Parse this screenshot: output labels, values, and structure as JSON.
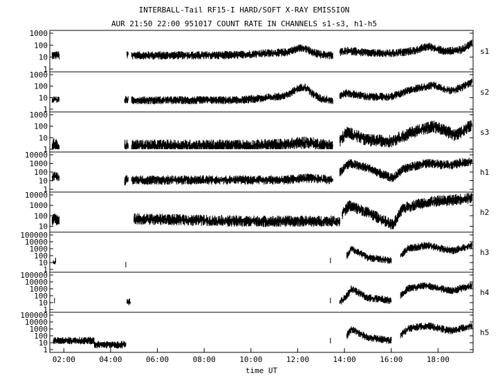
{
  "header": {
    "title": "INTERBALL-Tail RF15-I HARD/SOFT X-RAY EMISSION",
    "subtitle": "AUR 21:50 22:00 951017  COUNT RATE IN CHANNELS s1-s3, h1-h5"
  },
  "chart_data": {
    "type": "line",
    "title": "INTERBALL-Tail RF15-I HARD/SOFT X-RAY EMISSION",
    "subtitle": "AUR 21:50 22:00 951017  COUNT RATE IN CHANNELS s1-s3, h1-h5",
    "xlabel": "time UT",
    "x_ticks": [
      "02:00",
      "04:00",
      "06:00",
      "08:00",
      "10:00",
      "12:00",
      "14:00",
      "16:00",
      "18:00"
    ],
    "xlim_hours": [
      1.4,
      19.5
    ],
    "y_scale": "log",
    "grid": false,
    "panels": [
      {
        "name": "s1",
        "y_ticks": [
          "1",
          "10",
          "100",
          "1000"
        ],
        "ylim": [
          1,
          1000
        ],
        "series": [
          {
            "x": [
              1.5,
              1.6,
              1.7,
              1.8
            ],
            "values": [
              15,
              14,
              15,
              13
            ]
          },
          {
            "x": [
              4.7,
              4.75
            ],
            "values": [
              16,
              16
            ]
          },
          {
            "x": [
              4.9,
              6,
              8,
              9.5,
              10.5,
              11.5,
              12.0,
              12.3,
              12.6,
              13,
              13.5
            ],
            "values": [
              14,
              14,
              14,
              15,
              20,
              25,
              50,
              60,
              25,
              16,
              14
            ]
          },
          {
            "x": [
              13.8,
              14.1,
              15,
              16,
              17,
              17.6,
              18.3,
              19,
              19.45
            ],
            "values": [
              25,
              35,
              22,
              20,
              35,
              80,
              30,
              40,
              150
            ]
          }
        ]
      },
      {
        "name": "s2",
        "y_ticks": [
          "1",
          "10",
          "100",
          "1000"
        ],
        "ylim": [
          1,
          1000
        ],
        "series": [
          {
            "x": [
              1.5,
              1.6,
              1.7,
              1.8
            ],
            "values": [
              6,
              7,
              6,
              6
            ]
          },
          {
            "x": [
              4.6,
              4.7,
              4.75
            ],
            "values": [
              6,
              7,
              6
            ]
          },
          {
            "x": [
              4.9,
              6,
              8,
              9.5,
              10.5,
              11.5,
              12.0,
              12.3,
              12.6,
              13,
              13.5
            ],
            "values": [
              6,
              6,
              6,
              6,
              9,
              15,
              60,
              90,
              25,
              8,
              6
            ]
          },
          {
            "x": [
              13.8,
              14.1,
              15,
              16,
              17,
              17.8,
              18.5,
              19,
              19.45
            ],
            "values": [
              15,
              25,
              12,
              12,
              60,
              120,
              40,
              70,
              250
            ]
          }
        ]
      },
      {
        "name": "s3",
        "y_ticks": [
          "1",
          "10",
          "100",
          "1000"
        ],
        "ylim": [
          1,
          1000
        ],
        "series": [
          {
            "x": [
              1.5,
              1.6,
              1.7,
              1.8
            ],
            "values": [
              2,
              3,
              2,
              2
            ]
          },
          {
            "x": [
              4.6,
              4.7,
              4.75
            ],
            "values": [
              2,
              2,
              2
            ]
          },
          {
            "x": [
              4.9,
              6,
              8,
              10,
              11.5,
              12.3,
              13,
              13.5
            ],
            "values": [
              2,
              2,
              2,
              2,
              2.5,
              4,
              2.5,
              2
            ]
          },
          {
            "x": [
              13.8,
              14.1,
              14.5,
              15,
              16,
              17,
              17.8,
              18.8,
              19.45
            ],
            "values": [
              5,
              30,
              15,
              6,
              5,
              35,
              100,
              15,
              150
            ]
          }
        ]
      },
      {
        "name": "h1",
        "y_ticks": [
          "1",
          "10",
          "100",
          "1000",
          "10000"
        ],
        "ylim": [
          1,
          10000
        ],
        "series": [
          {
            "x": [
              1.5,
              1.6,
              1.7,
              1.8
            ],
            "values": [
              25,
              40,
              30,
              30
            ]
          },
          {
            "x": [
              4.6,
              4.7,
              4.75
            ],
            "values": [
              10,
              12,
              10
            ]
          },
          {
            "x": [
              4.9,
              6,
              8,
              10,
              11.5,
              12.3,
              13,
              13.5
            ],
            "values": [
              12,
              12,
              12,
              12,
              12,
              20,
              15,
              12
            ]
          },
          {
            "x": [
              13.8,
              14.2,
              15,
              16.0,
              16.1,
              16.5,
              17.5,
              18.5,
              19.45
            ],
            "values": [
              100,
              1000,
              300,
              20,
              20,
              250,
              1000,
              600,
              2000
            ]
          }
        ]
      },
      {
        "name": "h2",
        "y_ticks": [
          "10",
          "100",
          "1000",
          "10000"
        ],
        "ylim": [
          5,
          10000
        ],
        "series": [
          {
            "x": [
              1.5,
              1.6,
              1.7,
              1.8
            ],
            "values": [
              30,
              80,
              40,
              30
            ]
          },
          {
            "x": [
              5.0,
              5.3,
              9.5,
              13.4,
              13.8
            ],
            "values": [
              50,
              50,
              30,
              30,
              30
            ]
          },
          {
            "x": [
              13.9,
              14.2,
              15,
              16,
              16.1,
              16.5,
              17.5,
              18.5,
              19.45
            ],
            "values": [
              150,
              1000,
              200,
              15,
              15,
              500,
              2000,
              3000,
              5000
            ]
          }
        ]
      },
      {
        "name": "h3",
        "y_ticks": [
          "1",
          "10",
          "100",
          "1000",
          "10000",
          "100000"
        ],
        "ylim": [
          1,
          100000
        ],
        "series": [
          {
            "x": [
              1.55,
              1.6,
              1.65
            ],
            "values": [
              15,
              10,
              15
            ]
          },
          {
            "x": [
              4.65
            ],
            "values": [
              5
            ]
          },
          {
            "x": [
              13.4
            ],
            "values": [
              20
            ]
          },
          {
            "x": [
              14.1,
              14.3,
              15,
              15.6,
              16
            ],
            "values": [
              100,
              1000,
              50,
              30,
              20
            ]
          },
          {
            "x": [
              16.4,
              16.7,
              17.5,
              18.6,
              19.45
            ],
            "values": [
              100,
              1000,
              3000,
              500,
              3000
            ]
          }
        ]
      },
      {
        "name": "h4",
        "y_ticks": [
          "1",
          "10",
          "100",
          "1000",
          "10000",
          "100000"
        ],
        "ylim": [
          1,
          100000
        ],
        "series": [
          {
            "x": [
              1.6
            ],
            "values": [
              20
            ]
          },
          {
            "x": [
              4.7,
              4.85
            ],
            "values": [
              15,
              10
            ]
          },
          {
            "x": [
              13.4
            ],
            "values": [
              20
            ]
          },
          {
            "x": [
              13.8,
              14.1,
              14.3,
              15,
              15.6,
              16
            ],
            "values": [
              10,
              100,
              1000,
              50,
              30,
              20
            ]
          },
          {
            "x": [
              16.4,
              16.7,
              17.5,
              18.6,
              19.45
            ],
            "values": [
              100,
              1000,
              3000,
              500,
              3000
            ]
          }
        ]
      },
      {
        "name": "h5",
        "y_ticks": [
          "1",
          "10",
          "100",
          "1000",
          "10000",
          "100000"
        ],
        "ylim": [
          1,
          100000
        ],
        "series": [
          {
            "x": [
              1.55,
              3.3,
              3.3,
              4.65
            ],
            "values": [
              20,
              20,
              5,
              5
            ]
          },
          {
            "x": [
              13.4
            ],
            "values": [
              20
            ]
          },
          {
            "x": [
              14.1,
              14.3,
              15,
              15.6,
              16
            ],
            "values": [
              100,
              1000,
              50,
              30,
              20
            ]
          },
          {
            "x": [
              16.4,
              16.7,
              17.5,
              18.6,
              19.45
            ],
            "values": [
              100,
              1000,
              3000,
              500,
              3000
            ]
          }
        ]
      }
    ]
  }
}
